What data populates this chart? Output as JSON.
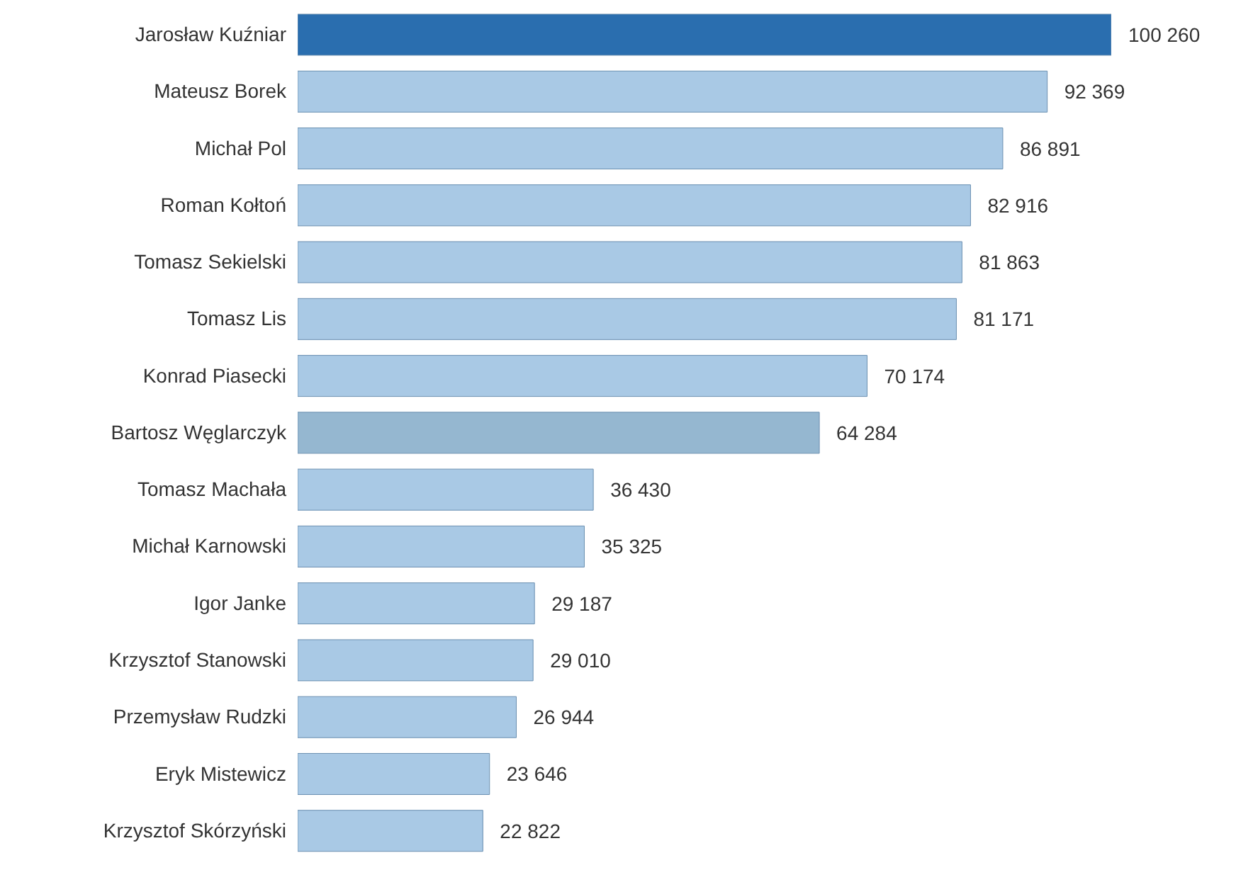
{
  "chart_data": {
    "type": "bar",
    "orientation": "horizontal",
    "categories": [
      "Jarosław Kuźniar",
      "Mateusz Borek",
      "Michał Pol",
      "Roman Kołtoń",
      "Tomasz Sekielski",
      "Tomasz Lis",
      "Konrad Piasecki",
      "Bartosz Węglarczyk",
      "Tomasz Machała",
      "Michał Karnowski",
      "Igor Janke",
      "Krzysztof Stanowski",
      "Przemysław Rudzki",
      "Eryk Mistewicz",
      "Krzysztof Skórzyński"
    ],
    "values": [
      100260,
      92369,
      86891,
      82916,
      81863,
      81171,
      70174,
      64284,
      36430,
      35325,
      29187,
      29010,
      26944,
      23646,
      22822
    ],
    "value_labels": [
      "100 260",
      "92 369",
      "86 891",
      "82 916",
      "81 863",
      "81 171",
      "70 174",
      "64 284",
      "36 430",
      "35 325",
      "29 187",
      "29 010",
      "26 944",
      "23 646",
      "22 822"
    ],
    "colors": [
      "#2a6eaf",
      "#a9c9e5",
      "#a9c9e5",
      "#a9c9e5",
      "#a9c9e5",
      "#a9c9e5",
      "#a9c9e5",
      "#95b7d0",
      "#a9c9e5",
      "#a9c9e5",
      "#a9c9e5",
      "#a9c9e5",
      "#a9c9e5",
      "#a9c9e5",
      "#a9c9e5"
    ],
    "grid": false,
    "legend": false
  }
}
